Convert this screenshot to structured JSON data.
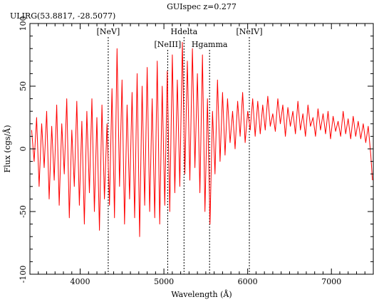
{
  "chart_data": {
    "type": "line",
    "title": "GUIspec z=0.277",
    "subtitle": "ULIRG(53.8817, -28.5077)",
    "xlabel": "Wavelength (Å)",
    "ylabel": "Flux (cgs/Å)",
    "xlim": [
      3400,
      7500
    ],
    "ylim": [
      -100,
      100
    ],
    "xticks": [
      4000,
      5000,
      6000,
      7000
    ],
    "yticks": [
      -100,
      -50,
      0,
      50,
      100
    ],
    "grid": false,
    "legend": "none",
    "line_color": "#ff0000",
    "marker_color": "#000000",
    "markers": [
      {
        "label": "[NeV]",
        "x": 4335,
        "row": 1
      },
      {
        "label": "[NeIII]",
        "x": 5045,
        "row": 2
      },
      {
        "label": "Hdelta",
        "x": 5240,
        "row": 1
      },
      {
        "label": "Hgamma",
        "x": 5545,
        "row": 2
      },
      {
        "label": "[NeIV]",
        "x": 6020,
        "row": 1
      }
    ],
    "series": [
      {
        "x": [
          3420,
          3450,
          3480,
          3510,
          3540,
          3570,
          3600,
          3630,
          3660,
          3690,
          3720,
          3750,
          3780,
          3810,
          3840,
          3870,
          3900,
          3930,
          3960,
          3990,
          4020,
          4050,
          4080,
          4110,
          4140,
          4170,
          4200,
          4230,
          4260,
          4290,
          4320,
          4350,
          4380,
          4410,
          4440,
          4470,
          4500,
          4530,
          4560,
          4590,
          4620,
          4650,
          4680,
          4710,
          4740,
          4770,
          4800,
          4830,
          4860,
          4890,
          4920,
          4950,
          4980,
          5010,
          5040,
          5070,
          5100,
          5130,
          5160,
          5190,
          5220,
          5250,
          5280,
          5310,
          5340,
          5370,
          5400,
          5430,
          5460,
          5490,
          5520,
          5550,
          5580,
          5610,
          5640,
          5670,
          5700,
          5730,
          5760,
          5790,
          5820,
          5850,
          5880,
          5910,
          5940,
          5970,
          6000,
          6030,
          6060,
          6090,
          6120,
          6150,
          6180,
          6210,
          6240,
          6270,
          6300,
          6330,
          6360,
          6390,
          6420,
          6450,
          6480,
          6510,
          6540,
          6570,
          6600,
          6630,
          6660,
          6690,
          6720,
          6750,
          6780,
          6810,
          6840,
          6870,
          6900,
          6930,
          6960,
          6990,
          7020,
          7050,
          7080,
          7110,
          7140,
          7170,
          7200,
          7230,
          7260,
          7290,
          7320,
          7350,
          7380,
          7410,
          7440,
          7470,
          7490
        ],
        "y": [
          15,
          -10,
          25,
          -30,
          20,
          -15,
          30,
          -40,
          18,
          -25,
          35,
          -45,
          20,
          -20,
          40,
          -55,
          15,
          -30,
          38,
          -45,
          22,
          -60,
          30,
          -35,
          40,
          -50,
          25,
          -65,
          35,
          -40,
          20,
          -45,
          48,
          -55,
          80,
          -30,
          55,
          -60,
          35,
          -40,
          45,
          -55,
          60,
          -70,
          50,
          -45,
          65,
          -50,
          40,
          -55,
          70,
          -60,
          50,
          -45,
          62,
          -50,
          75,
          -35,
          55,
          -30,
          85,
          -20,
          70,
          -25,
          80,
          -15,
          60,
          -35,
          75,
          -50,
          40,
          -60,
          30,
          -20,
          55,
          -10,
          45,
          -5,
          40,
          5,
          30,
          0,
          38,
          10,
          45,
          5,
          30,
          15,
          40,
          10,
          38,
          12,
          35,
          15,
          42,
          18,
          28,
          14,
          40,
          20,
          35,
          10,
          33,
          18,
          30,
          12,
          38,
          15,
          28,
          10,
          35,
          18,
          25,
          10,
          32,
          15,
          28,
          12,
          30,
          8,
          26,
          14,
          22,
          10,
          30,
          12,
          24,
          8,
          26,
          10,
          22,
          8,
          20,
          5,
          18,
          -5,
          -25
        ]
      }
    ]
  }
}
